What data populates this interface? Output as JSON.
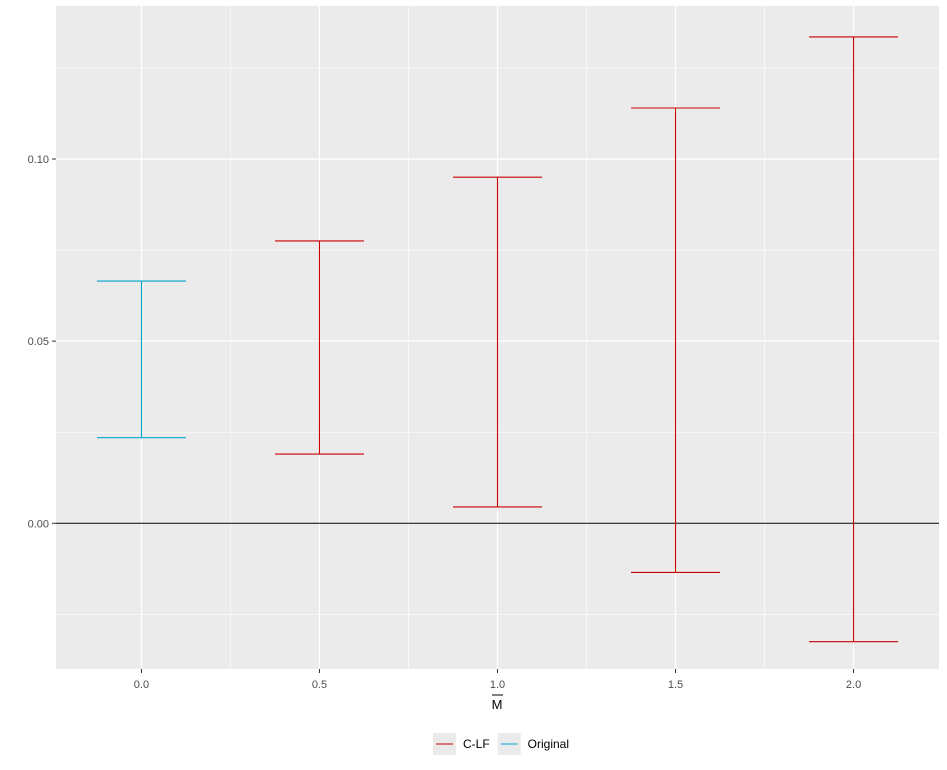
{
  "chart_data": {
    "type": "errorbar",
    "xlabel": "M",
    "xlabel_overline": true,
    "x_ticks": [
      "0.0",
      "0.5",
      "1.0",
      "1.5",
      "2.0"
    ],
    "y_ticks": [
      "0.00",
      "0.05",
      "0.10"
    ],
    "xlim": [
      -0.24,
      2.24
    ],
    "ylim": [
      -0.04,
      0.142
    ],
    "hline": 0,
    "grid": true,
    "legend_position": "bottom",
    "series": [
      {
        "name": "Original",
        "color": "#00A5CF",
        "points": [
          {
            "x": 0.0,
            "ymin": 0.0235,
            "ymax": 0.0665
          }
        ]
      },
      {
        "name": "C-LF",
        "color": "#CC0000",
        "points": [
          {
            "x": 0.5,
            "ymin": 0.019,
            "ymax": 0.0775
          },
          {
            "x": 1.0,
            "ymin": 0.0045,
            "ymax": 0.095
          },
          {
            "x": 1.5,
            "ymin": -0.0135,
            "ymax": 0.114
          },
          {
            "x": 2.0,
            "ymin": -0.0325,
            "ymax": 0.1335
          }
        ]
      }
    ],
    "legend": [
      "C-LF",
      "Original"
    ]
  }
}
